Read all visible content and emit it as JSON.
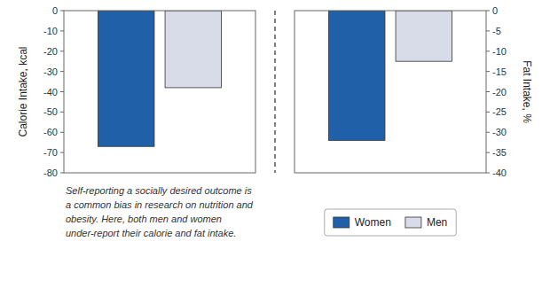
{
  "chart_data": [
    {
      "type": "bar",
      "y_label": "Calorie Intake, kcal",
      "categories": [
        null
      ],
      "series": [
        {
          "name": "Women",
          "color": "#2060A8",
          "values": [
            -67
          ]
        },
        {
          "name": "Men",
          "color": "#D8DCE8",
          "values": [
            -38
          ]
        }
      ],
      "ylim": [
        -80,
        0
      ],
      "yticks": [
        0,
        -10,
        -20,
        -30,
        -40,
        -50,
        -60,
        -70,
        -80
      ],
      "tick_labels": "y",
      "annotation": "Self-reporting a socially desired outcome is\na common bias in research on nutrition and\nobesity. Here, both men and women\nunder-report their calorie and fat intake."
    },
    {
      "type": "bar",
      "y_label": "Fat Intake, %",
      "categories": [
        null
      ],
      "series": [
        {
          "name": "Women",
          "color": "#2060A8",
          "values": [
            -32
          ]
        },
        {
          "name": "Men",
          "color": "#D8DCE8",
          "values": [
            -12.5
          ]
        }
      ],
      "ylim": [
        -40,
        0
      ],
      "yticks": [
        0,
        -5,
        -10,
        -15,
        -20,
        -25,
        -30,
        -35,
        -40
      ],
      "tick_labels": "y",
      "legend": "bottom"
    }
  ]
}
